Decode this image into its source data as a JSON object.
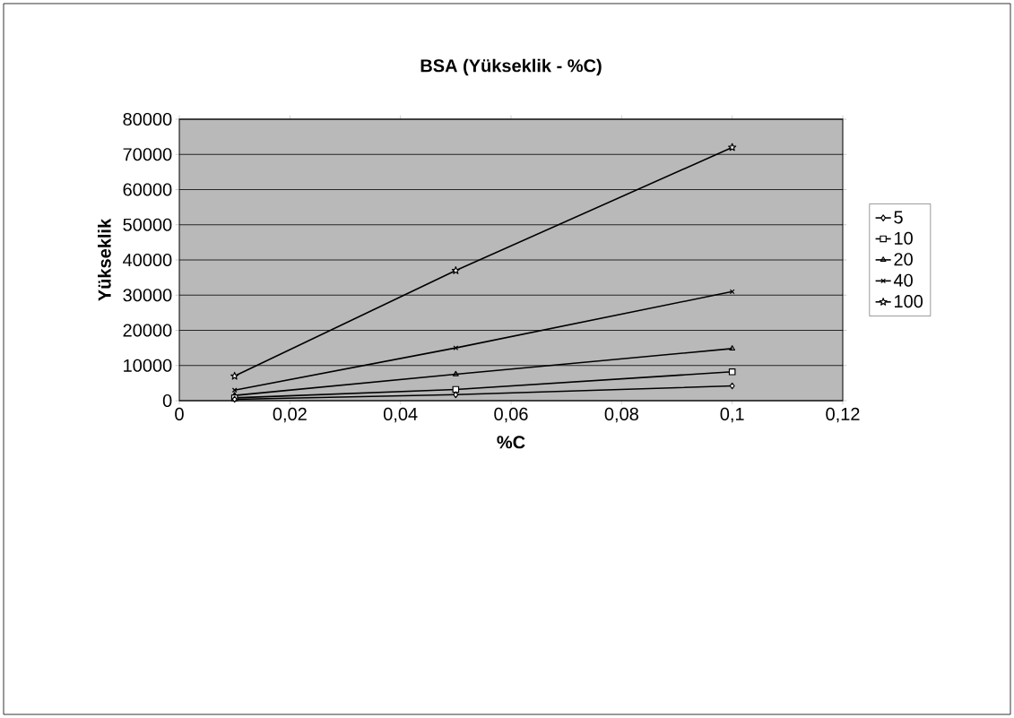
{
  "chart_data": {
    "type": "line",
    "title": "BSA (Yükseklik - %C)",
    "xlabel": "%C",
    "ylabel": "Yükseklik",
    "x": [
      0.01,
      0.05,
      0.1
    ],
    "series": [
      {
        "name": "5",
        "color": "#000000",
        "marker": "diamond",
        "values": [
          400,
          1700,
          4200
        ]
      },
      {
        "name": "10",
        "color": "#000000",
        "marker": "square",
        "values": [
          800,
          3200,
          8200
        ]
      },
      {
        "name": "20",
        "color": "#000000",
        "marker": "triangle",
        "values": [
          1500,
          7500,
          14800
        ]
      },
      {
        "name": "40",
        "color": "#000000",
        "marker": "cross",
        "values": [
          3000,
          15000,
          31000
        ]
      },
      {
        "name": "100",
        "color": "#000000",
        "marker": "star",
        "values": [
          7000,
          37000,
          72000
        ]
      }
    ],
    "xlim": [
      0,
      0.12
    ],
    "ylim": [
      0,
      80000
    ],
    "xticks": [
      0,
      {
        "value": 0.02,
        "label": "0,02"
      },
      {
        "value": 0.04,
        "label": "0,04"
      },
      {
        "value": 0.06,
        "label": "0,06"
      },
      {
        "value": 0.08,
        "label": "0,08"
      },
      {
        "value": 0.1,
        "label": "0,1"
      },
      {
        "value": 0.12,
        "label": "0,12"
      }
    ],
    "yticks": [
      0,
      10000,
      20000,
      30000,
      40000,
      50000,
      60000,
      70000,
      80000
    ],
    "grid": "y",
    "legend": "right",
    "line_style": "solid"
  }
}
